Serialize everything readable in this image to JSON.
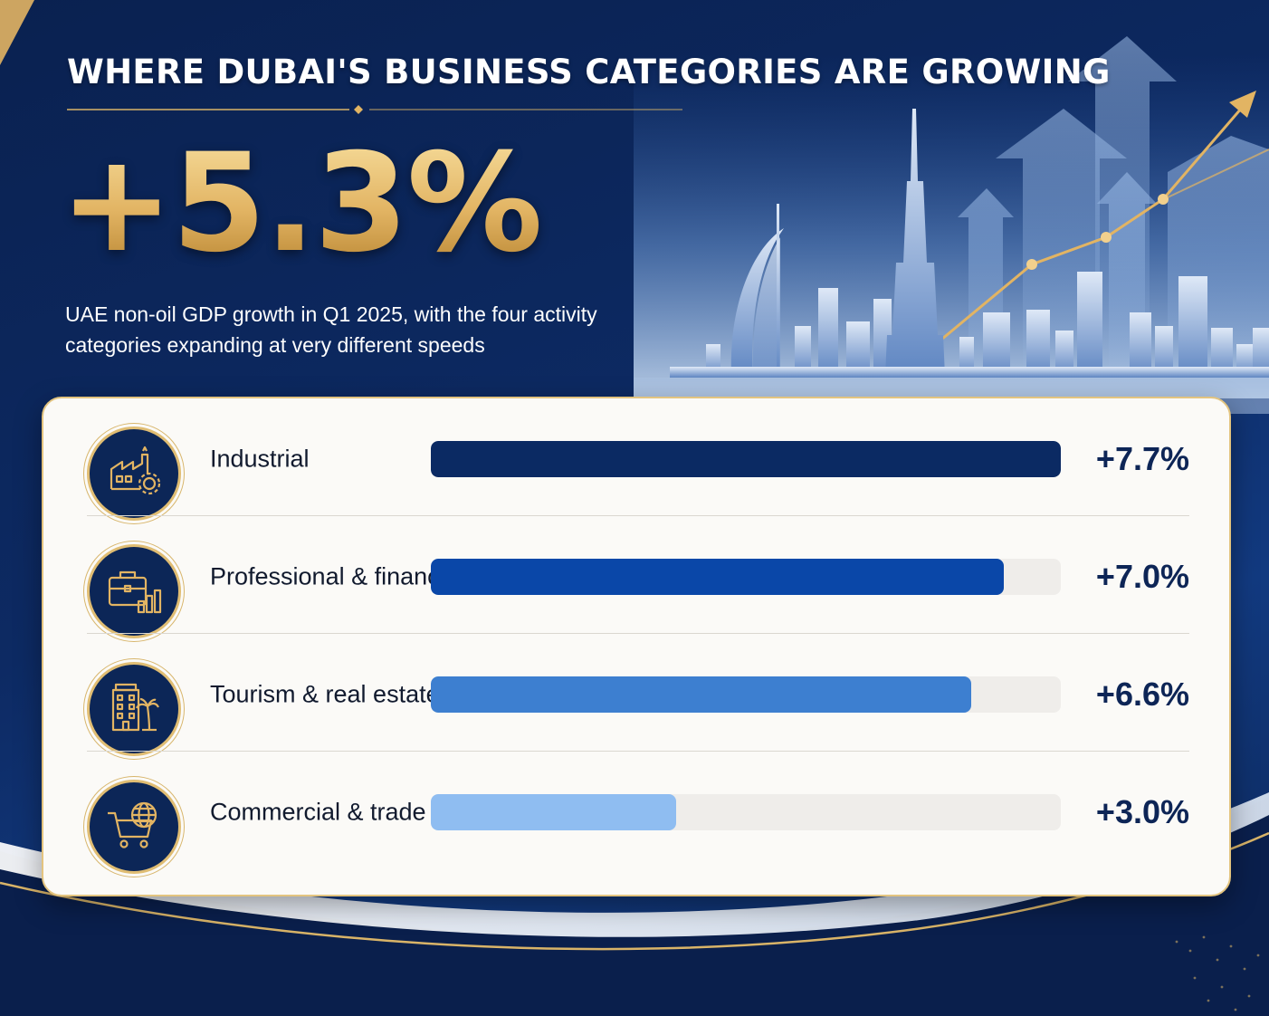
{
  "header": {
    "title": "WHERE DUBAI'S BUSINESS CATEGORIES ARE GROWING",
    "headline_stat": "+5.3%",
    "subtitle": "UAE non-oil GDP growth in Q1 2025, with the four activity categories expanding at very different speeds"
  },
  "colors": {
    "navy": "#0c2657",
    "gold": "#e2b463",
    "bar_industrial": "#0b2a63",
    "bar_professional": "#0a47a8",
    "bar_tourism": "#3d7fd0",
    "bar_commercial": "#8fbdf1",
    "track": "#efedea"
  },
  "chart_data": {
    "type": "bar",
    "orientation": "horizontal",
    "title": "WHERE DUBAI'S BUSINESS CATEGORIES ARE GROWING",
    "categories": [
      "Industrial",
      "Professional & financial",
      "Tourism & real estate",
      "Commercial & trade"
    ],
    "values": [
      7.7,
      7.0,
      6.6,
      3.0
    ],
    "value_labels": [
      "+7.7%",
      "+7.0%",
      "+6.6%",
      "+3.0%"
    ],
    "icons": [
      "factory-gear-icon",
      "briefcase-chart-icon",
      "hotel-palm-icon",
      "cart-globe-icon"
    ],
    "bar_colors": [
      "#0b2a63",
      "#0a47a8",
      "#3d7fd0",
      "#8fbdf1"
    ],
    "xlim": [
      0,
      7.7
    ],
    "grid": false,
    "legend": "none"
  }
}
